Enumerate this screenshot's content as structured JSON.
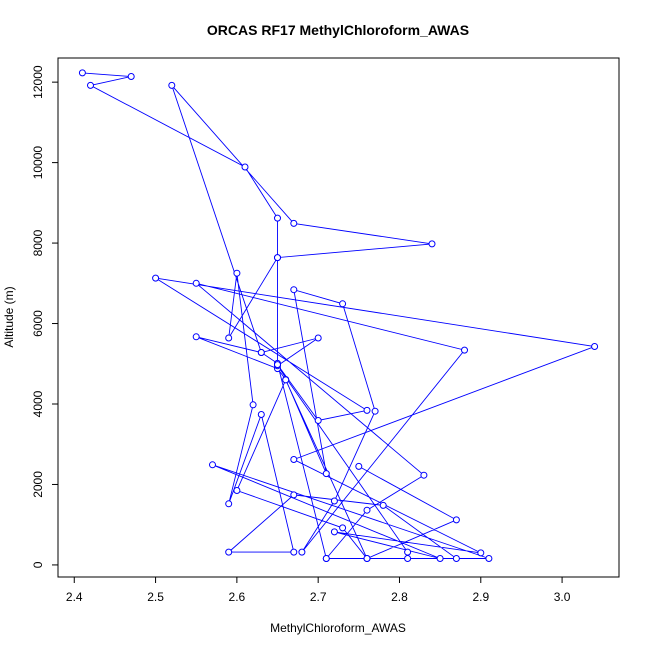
{
  "chart_data": {
    "type": "line",
    "title": "ORCAS RF17 MethylChloroform_AWAS",
    "xlabel": "MethylChloroform_AWAS",
    "ylabel": "Altitude (m)",
    "xlim": [
      2.38,
      3.07
    ],
    "ylim": [
      -300,
      12600
    ],
    "xticks": [
      2.4,
      2.5,
      2.6,
      2.7,
      2.8,
      2.9,
      3.0
    ],
    "yticks": [
      0,
      2000,
      4000,
      6000,
      8000,
      10000,
      12000
    ],
    "xtick_labels": [
      "2.4",
      "2.5",
      "2.6",
      "2.7",
      "2.8",
      "2.9",
      "3.0"
    ],
    "ytick_labels": [
      "0",
      "2000",
      "4000",
      "6000",
      "8000",
      "10000",
      "12000"
    ],
    "grid": false,
    "line_color": "#0000ff",
    "marker": "open-circle",
    "points": [
      [
        2.41,
        12230
      ],
      [
        2.47,
        12140
      ],
      [
        2.42,
        11920
      ],
      [
        2.61,
        9890
      ],
      [
        2.65,
        8620
      ],
      [
        2.65,
        7640
      ],
      [
        2.59,
        5640
      ],
      [
        2.6,
        7250
      ],
      [
        2.62,
        3980
      ],
      [
        2.59,
        1520
      ],
      [
        2.63,
        3740
      ],
      [
        2.67,
        320
      ],
      [
        2.59,
        320
      ],
      [
        2.67,
        1740
      ],
      [
        2.78,
        1480
      ],
      [
        2.87,
        160
      ],
      [
        2.71,
        160
      ],
      [
        2.76,
        1360
      ],
      [
        2.83,
        2230
      ],
      [
        2.55,
        7000
      ],
      [
        2.88,
        5340
      ],
      [
        2.68,
        320
      ],
      [
        2.72,
        1590
      ],
      [
        2.77,
        3820
      ],
      [
        2.73,
        6490
      ],
      [
        2.67,
        6840
      ],
      [
        2.71,
        2270
      ],
      [
        2.66,
        4610
      ],
      [
        2.65,
        4880
      ],
      [
        2.55,
        5670
      ],
      [
        2.63,
        5280
      ],
      [
        2.7,
        5640
      ],
      [
        2.65,
        4950
      ],
      [
        2.81,
        320
      ],
      [
        2.81,
        160
      ],
      [
        2.71,
        160
      ],
      [
        2.65,
        5010
      ],
      [
        2.63,
        5280
      ],
      [
        2.52,
        11920
      ],
      [
        2.67,
        8490
      ],
      [
        2.84,
        7980
      ],
      [
        2.65,
        7640
      ],
      [
        2.65,
        4980
      ],
      [
        2.7,
        3590
      ],
      [
        2.76,
        3840
      ],
      [
        2.5,
        7130
      ],
      [
        3.04,
        5430
      ],
      [
        2.67,
        2620
      ],
      [
        2.9,
        300
      ],
      [
        2.72,
        820
      ],
      [
        2.85,
        160
      ],
      [
        2.57,
        2490
      ],
      [
        2.91,
        160
      ],
      [
        2.76,
        160
      ],
      [
        2.73,
        920
      ],
      [
        2.6,
        1850
      ],
      [
        2.66,
        4600
      ],
      [
        2.76,
        160
      ],
      [
        2.87,
        1120
      ],
      [
        2.75,
        2450
      ]
    ]
  }
}
